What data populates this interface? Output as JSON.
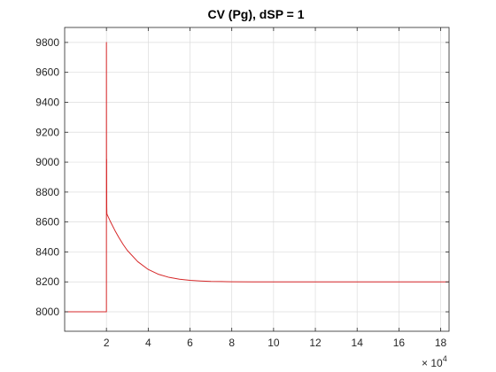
{
  "chart_data": {
    "type": "line",
    "title": "CV (Pg), dSP = 1",
    "xlabel": "",
    "ylabel": "",
    "xlim": [
      0,
      184000
    ],
    "ylim": [
      7870,
      9900
    ],
    "xticks": [
      20000,
      40000,
      60000,
      80000,
      100000,
      120000,
      140000,
      160000,
      180000
    ],
    "xtick_labels": [
      "2",
      "4",
      "6",
      "8",
      "10",
      "12",
      "14",
      "16",
      "18"
    ],
    "x_exponent_base": "× 10",
    "x_exponent_power": "4",
    "yticks": [
      8000,
      8200,
      8400,
      8600,
      8800,
      9000,
      9200,
      9400,
      9600,
      9800
    ],
    "ytick_labels": [
      "8000",
      "8200",
      "8400",
      "8600",
      "8800",
      "9000",
      "9200",
      "9400",
      "9600",
      "9800"
    ],
    "grid": true,
    "series": [
      {
        "color": "#d62728",
        "x": [
          0,
          19990,
          20000,
          20000,
          20050,
          20100,
          20150,
          20200,
          20300,
          20500,
          21000,
          22000,
          24000,
          26000,
          28000,
          30000,
          35000,
          40000,
          45000,
          50000,
          55000,
          60000,
          65000,
          70000,
          75000,
          80000,
          90000,
          100000,
          120000,
          140000,
          160000,
          184000
        ],
        "y": [
          8000,
          8000,
          8000,
          9800,
          8650,
          9020,
          8700,
          8660,
          8650,
          8645,
          8630,
          8600,
          8545,
          8495,
          8450,
          8410,
          8335,
          8283,
          8250,
          8230,
          8218,
          8210,
          8206,
          8203,
          8202,
          8201,
          8200,
          8200,
          8200,
          8200,
          8200,
          8200
        ]
      }
    ]
  }
}
